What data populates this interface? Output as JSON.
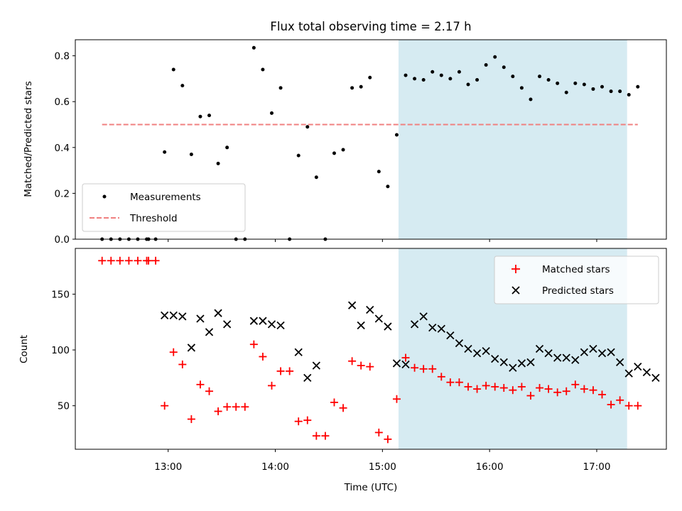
{
  "chart_data": [
    {
      "type": "scatter",
      "title": "Flux total observing time = 2.17 h",
      "xlabel": "",
      "ylabel": "Matched/Predicted stars",
      "xlim": [
        "12:08",
        "17:39"
      ],
      "ylim": [
        0,
        0.87
      ],
      "xticks": [
        "13:00",
        "14:00",
        "15:00",
        "16:00",
        "17:00"
      ],
      "yticks": [
        0.0,
        0.2,
        0.4,
        0.6,
        0.8
      ],
      "ytick_labels": [
        "0.0",
        "0.2",
        "0.4",
        "0.6",
        "0.8"
      ],
      "shaded_region": {
        "x": [
          "15:09",
          "17:17"
        ],
        "color": "#add8e6"
      },
      "legend": {
        "position": "lower-left",
        "entries": [
          "Measurements",
          "Threshold"
        ]
      },
      "series": [
        {
          "name": "Measurements",
          "marker": "dot",
          "color": "#000000",
          "points": [
            [
              "12:23",
              0
            ],
            [
              "12:28",
              0
            ],
            [
              "12:33",
              0
            ],
            [
              "12:38",
              0
            ],
            [
              "12:43",
              0
            ],
            [
              "12:48",
              0
            ],
            [
              "12:49",
              0
            ],
            [
              "12:53",
              0
            ],
            [
              "12:58",
              0.38
            ],
            [
              "13:03",
              0.74
            ],
            [
              "13:08",
              0.67
            ],
            [
              "13:13",
              0.37
            ],
            [
              "13:18",
              0.535
            ],
            [
              "13:23",
              0.54
            ],
            [
              "13:28",
              0.33
            ],
            [
              "13:33",
              0.4
            ],
            [
              "13:38",
              0
            ],
            [
              "13:43",
              0
            ],
            [
              "13:48",
              0.835
            ],
            [
              "13:53",
              0.74
            ],
            [
              "13:58",
              0.55
            ],
            [
              "14:03",
              0.66
            ],
            [
              "14:08",
              0
            ],
            [
              "14:13",
              0.365
            ],
            [
              "14:18",
              0.49
            ],
            [
              "14:23",
              0.27
            ],
            [
              "14:28",
              0
            ],
            [
              "14:33",
              0.375
            ],
            [
              "14:38",
              0.39
            ],
            [
              "14:43",
              0.66
            ],
            [
              "14:48",
              0.665
            ],
            [
              "14:53",
              0.705
            ],
            [
              "14:58",
              0.295
            ],
            [
              "15:03",
              0.23
            ],
            [
              "15:08",
              0.455
            ],
            [
              "15:13",
              0.715
            ],
            [
              "15:18",
              0.7
            ],
            [
              "15:23",
              0.695
            ],
            [
              "15:28",
              0.73
            ],
            [
              "15:33",
              0.715
            ],
            [
              "15:38",
              0.7
            ],
            [
              "15:43",
              0.73
            ],
            [
              "15:48",
              0.675
            ],
            [
              "15:53",
              0.695
            ],
            [
              "15:58",
              0.76
            ],
            [
              "16:03",
              0.795
            ],
            [
              "16:08",
              0.75
            ],
            [
              "16:13",
              0.71
            ],
            [
              "16:18",
              0.66
            ],
            [
              "16:23",
              0.61
            ],
            [
              "16:28",
              0.71
            ],
            [
              "16:33",
              0.695
            ],
            [
              "16:38",
              0.68
            ],
            [
              "16:43",
              0.64
            ],
            [
              "16:48",
              0.68
            ],
            [
              "16:53",
              0.675
            ],
            [
              "16:58",
              0.655
            ],
            [
              "17:03",
              0.665
            ],
            [
              "17:08",
              0.645
            ],
            [
              "17:13",
              0.645
            ],
            [
              "17:18",
              0.63
            ],
            [
              "17:23",
              0.665
            ]
          ]
        },
        {
          "name": "Threshold",
          "style": "dashed",
          "color": "#f08080",
          "x": [
            "12:23",
            "17:23"
          ],
          "y": [
            0.5,
            0.5
          ]
        }
      ]
    },
    {
      "type": "scatter",
      "title": "",
      "xlabel": "Time (UTC)",
      "ylabel": "Count",
      "xlim": [
        "12:08",
        "17:39"
      ],
      "ylim": [
        11,
        191
      ],
      "xticks": [
        "13:00",
        "14:00",
        "15:00",
        "16:00",
        "17:00"
      ],
      "yticks": [
        50,
        100,
        150
      ],
      "ytick_labels": [
        "50",
        "100",
        "150"
      ],
      "shaded_region": {
        "x": [
          "15:09",
          "17:17"
        ],
        "color": "#add8e6"
      },
      "legend": {
        "position": "upper-right",
        "entries": [
          "Matched stars",
          "Predicted stars"
        ]
      },
      "series": [
        {
          "name": "Matched stars",
          "marker": "plus",
          "color": "#ff0000",
          "points": [
            [
              "12:23",
              180
            ],
            [
              "12:28",
              180
            ],
            [
              "12:33",
              180
            ],
            [
              "12:38",
              180
            ],
            [
              "12:43",
              180
            ],
            [
              "12:48",
              180
            ],
            [
              "12:49",
              180
            ],
            [
              "12:53",
              180
            ],
            [
              "12:58",
              50
            ],
            [
              "13:03",
              98
            ],
            [
              "13:08",
              87
            ],
            [
              "13:13",
              38
            ],
            [
              "13:18",
              69
            ],
            [
              "13:23",
              63
            ],
            [
              "13:28",
              45
            ],
            [
              "13:33",
              49
            ],
            [
              "13:38",
              49
            ],
            [
              "13:43",
              49
            ],
            [
              "13:48",
              105
            ],
            [
              "13:53",
              94
            ],
            [
              "13:58",
              68
            ],
            [
              "14:03",
              81
            ],
            [
              "14:08",
              81
            ],
            [
              "14:13",
              36
            ],
            [
              "14:18",
              37
            ],
            [
              "14:23",
              23
            ],
            [
              "14:28",
              23
            ],
            [
              "14:33",
              53
            ],
            [
              "14:38",
              48
            ],
            [
              "14:43",
              90
            ],
            [
              "14:48",
              86
            ],
            [
              "14:53",
              85
            ],
            [
              "14:58",
              26
            ],
            [
              "15:03",
              20
            ],
            [
              "15:08",
              56
            ],
            [
              "15:13",
              93
            ],
            [
              "15:18",
              84
            ],
            [
              "15:23",
              83
            ],
            [
              "15:28",
              83
            ],
            [
              "15:33",
              76
            ],
            [
              "15:38",
              71
            ],
            [
              "15:43",
              71
            ],
            [
              "15:48",
              67
            ],
            [
              "15:53",
              65
            ],
            [
              "15:58",
              68
            ],
            [
              "16:03",
              67
            ],
            [
              "16:08",
              66
            ],
            [
              "16:13",
              64
            ],
            [
              "16:18",
              67
            ],
            [
              "16:23",
              59
            ],
            [
              "16:28",
              66
            ],
            [
              "16:33",
              65
            ],
            [
              "16:38",
              62
            ],
            [
              "16:43",
              63
            ],
            [
              "16:48",
              69
            ],
            [
              "16:53",
              65
            ],
            [
              "16:58",
              64
            ],
            [
              "17:03",
              60
            ],
            [
              "17:08",
              51
            ],
            [
              "17:13",
              55
            ],
            [
              "17:18",
              50
            ],
            [
              "17:23",
              50
            ]
          ]
        },
        {
          "name": "Predicted stars",
          "marker": "x",
          "color": "#000000",
          "points": [
            [
              "12:58",
              131
            ],
            [
              "13:03",
              131
            ],
            [
              "13:08",
              130
            ],
            [
              "13:13",
              102
            ],
            [
              "13:18",
              128
            ],
            [
              "13:23",
              116
            ],
            [
              "13:28",
              133
            ],
            [
              "13:33",
              123
            ],
            [
              "13:48",
              126
            ],
            [
              "13:53",
              126
            ],
            [
              "13:58",
              123
            ],
            [
              "14:03",
              122
            ],
            [
              "14:13",
              98
            ],
            [
              "14:18",
              75
            ],
            [
              "14:23",
              86
            ],
            [
              "14:43",
              140
            ],
            [
              "14:48",
              122
            ],
            [
              "14:53",
              136
            ],
            [
              "14:58",
              128
            ],
            [
              "15:03",
              121
            ],
            [
              "15:08",
              88
            ],
            [
              "15:13",
              87
            ],
            [
              "15:18",
              123
            ],
            [
              "15:23",
              130
            ],
            [
              "15:28",
              120
            ],
            [
              "15:33",
              119
            ],
            [
              "15:38",
              113
            ],
            [
              "15:43",
              106
            ],
            [
              "15:48",
              101
            ],
            [
              "15:53",
              97
            ],
            [
              "15:58",
              99
            ],
            [
              "16:03",
              92
            ],
            [
              "16:08",
              89
            ],
            [
              "16:13",
              84
            ],
            [
              "16:18",
              88
            ],
            [
              "16:23",
              89
            ],
            [
              "16:28",
              101
            ],
            [
              "16:33",
              97
            ],
            [
              "16:38",
              93
            ],
            [
              "16:43",
              93
            ],
            [
              "16:48",
              91
            ],
            [
              "16:53",
              98
            ],
            [
              "16:58",
              101
            ],
            [
              "17:03",
              97
            ],
            [
              "17:08",
              98
            ],
            [
              "17:13",
              89
            ],
            [
              "17:18",
              79
            ],
            [
              "17:23",
              85
            ],
            [
              "17:28",
              80
            ],
            [
              "17:33",
              75
            ]
          ]
        }
      ]
    }
  ]
}
